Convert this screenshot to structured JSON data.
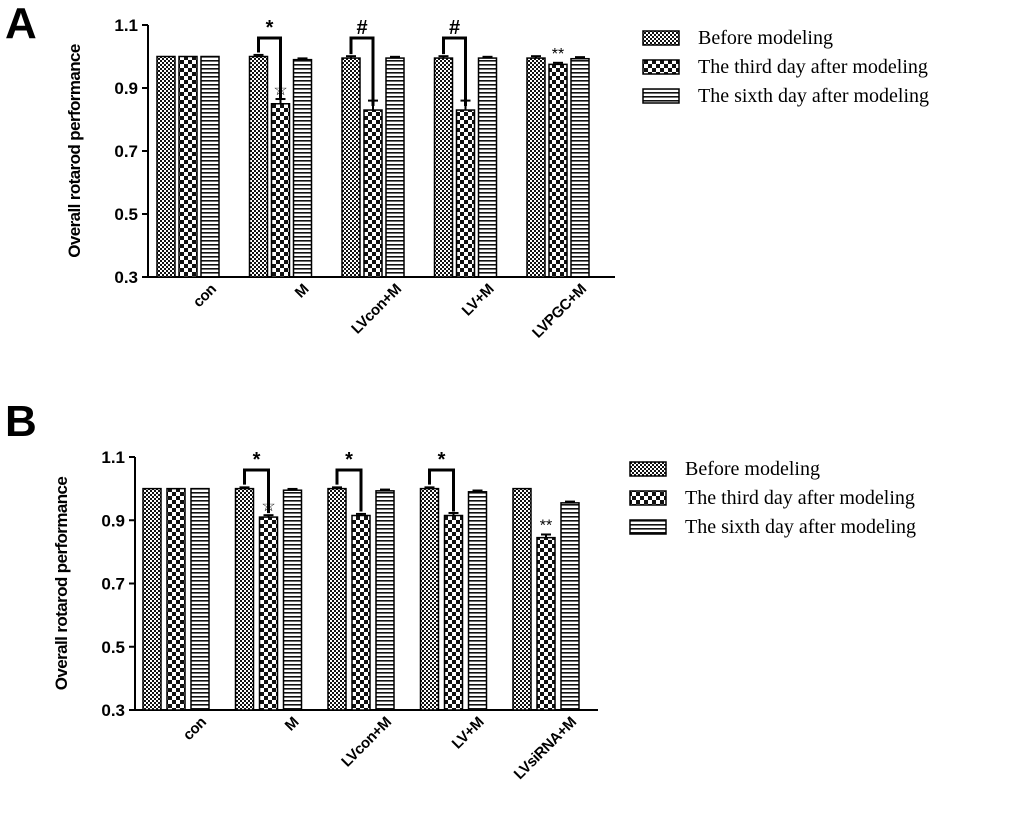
{
  "chart_data": [
    {
      "panel": "A",
      "type": "bar",
      "ylabel": "Overall rotarod performance",
      "ylim": [
        0.3,
        1.1
      ],
      "yticks": [
        "0.3",
        "0.5",
        "0.7",
        "0.9",
        "1.1"
      ],
      "categories": [
        "con",
        "M",
        "LVcon+M",
        "LV+M",
        "LVPGC+M"
      ],
      "legend_position": "top-right",
      "series": [
        {
          "name": "Before modeling",
          "pattern": "checker-small",
          "values": [
            1.0,
            1.0,
            0.995,
            0.995,
            0.995
          ],
          "errors": [
            0,
            0.005,
            0.006,
            0.006,
            0.006
          ]
        },
        {
          "name": "The third day after modeling",
          "pattern": "checker-large",
          "values": [
            1.0,
            0.85,
            0.83,
            0.83,
            0.975
          ],
          "errors": [
            0,
            0.015,
            0.03,
            0.03,
            0.005
          ]
        },
        {
          "name": "The sixth day after modeling",
          "pattern": "hlines",
          "values": [
            1.0,
            0.99,
            0.995,
            0.995,
            0.993
          ],
          "errors": [
            0,
            0.004,
            0.004,
            0.004,
            0.005
          ]
        }
      ],
      "annotations": [
        {
          "type": "bracket",
          "category": 1,
          "from": 0,
          "to": 1,
          "label": "*"
        },
        {
          "type": "bracket",
          "category": 2,
          "from": 0,
          "to": 1,
          "label": "#"
        },
        {
          "type": "bracket",
          "category": 3,
          "from": 0,
          "to": 1,
          "label": "#"
        },
        {
          "type": "mark",
          "category": 1,
          "series": 1,
          "label": "☆"
        },
        {
          "type": "mark",
          "category": 4,
          "series": 1,
          "label": "**"
        }
      ]
    },
    {
      "panel": "B",
      "type": "bar",
      "ylabel": "Overall rotarod performance",
      "ylim": [
        0.3,
        1.1
      ],
      "yticks": [
        "0.3",
        "0.5",
        "0.7",
        "0.9",
        "1.1"
      ],
      "categories": [
        "con",
        "M",
        "LVcon+M",
        "LV+M",
        "LVsiRNA+M"
      ],
      "legend_position": "top-right",
      "series": [
        {
          "name": "Before modeling",
          "pattern": "checker-small",
          "values": [
            1.0,
            1.0,
            1.0,
            1.0,
            1.0
          ],
          "errors": [
            0,
            0.004,
            0.004,
            0.004,
            0
          ]
        },
        {
          "name": "The third day after modeling",
          "pattern": "checker-large",
          "values": [
            1.0,
            0.91,
            0.915,
            0.915,
            0.845
          ],
          "errors": [
            0,
            0.006,
            0.005,
            0.008,
            0.01
          ]
        },
        {
          "name": "The sixth day after modeling",
          "pattern": "hlines",
          "values": [
            1.0,
            0.995,
            0.993,
            0.99,
            0.955
          ],
          "errors": [
            0,
            0.004,
            0.004,
            0.004,
            0.004
          ]
        }
      ],
      "annotations": [
        {
          "type": "bracket",
          "category": 1,
          "from": 0,
          "to": 1,
          "label": "*"
        },
        {
          "type": "bracket",
          "category": 2,
          "from": 0,
          "to": 1,
          "label": "*"
        },
        {
          "type": "bracket",
          "category": 3,
          "from": 0,
          "to": 1,
          "label": "*"
        },
        {
          "type": "mark",
          "category": 1,
          "series": 1,
          "label": "☆"
        },
        {
          "type": "mark",
          "category": 4,
          "series": 1,
          "label": "**"
        }
      ]
    }
  ]
}
